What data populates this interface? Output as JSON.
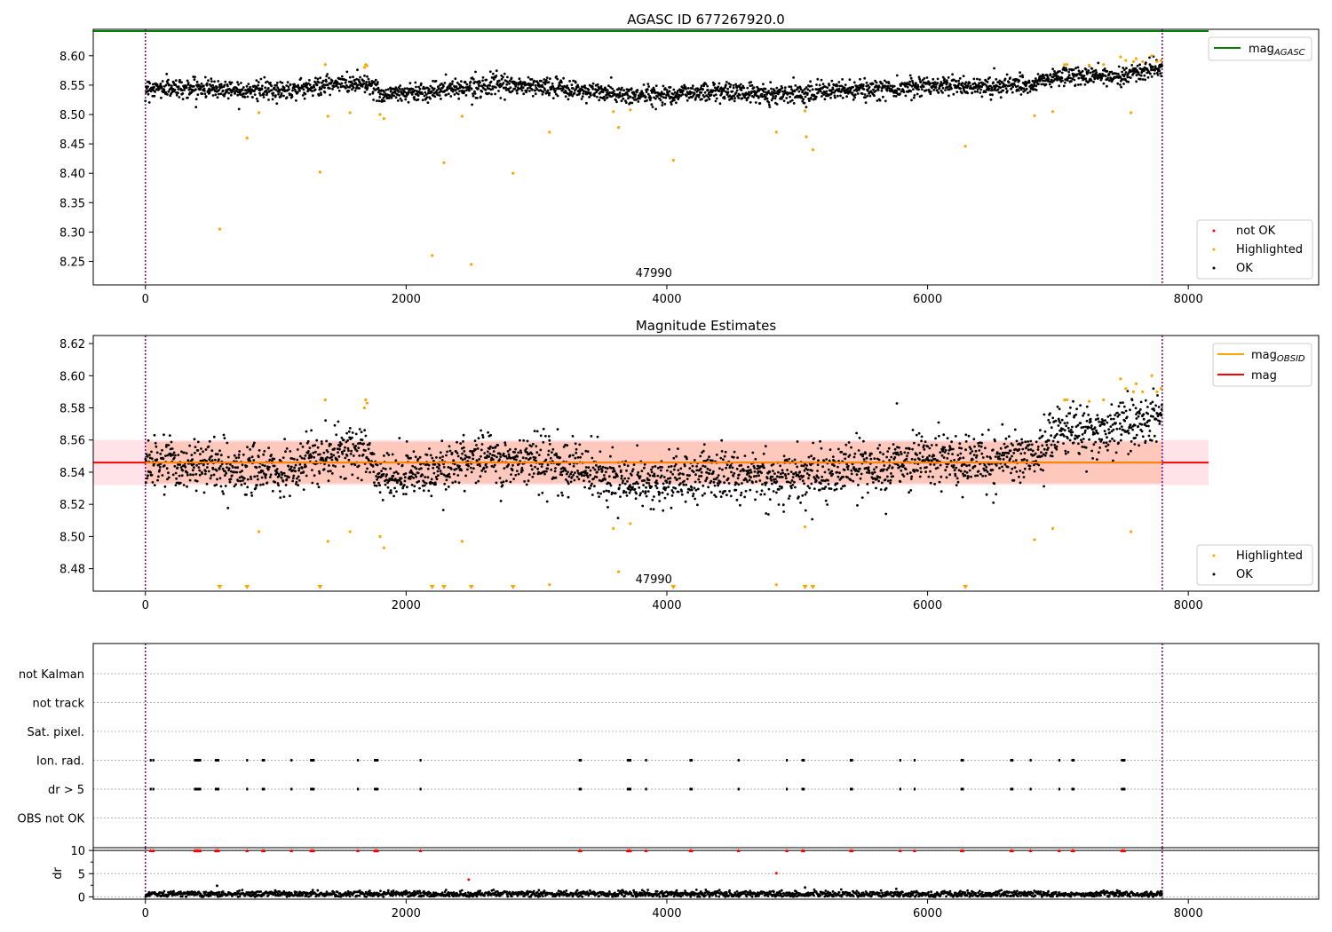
{
  "figure": {
    "panel1_title": "AGASC ID 677267920.0",
    "panel2_title": "Magnitude Estimates",
    "colors": {
      "ok": "#000000",
      "highlighted": "#ffa500",
      "not_ok": "#ff0000",
      "mag_agasc_line": "#008000",
      "mag_line": "#ff0000",
      "mag_obsid_line": "#ffa500",
      "obs_boundary": "#800080",
      "band_outer": "#ffc0cb",
      "band_inner": "#ffa07a"
    }
  },
  "chart_data": [
    {
      "type": "scatter",
      "title": "AGASC ID 677267920.0",
      "xlim": [
        -400,
        9000
      ],
      "ylim": [
        8.21,
        8.645
      ],
      "xticks": [
        0,
        2000,
        4000,
        6000,
        8000
      ],
      "yticks": [
        8.25,
        8.3,
        8.35,
        8.4,
        8.45,
        8.5,
        8.55,
        8.6
      ],
      "ytick_labels": [
        "8.25",
        "8.30",
        "8.35",
        "8.40",
        "8.45",
        "8.50",
        "8.55",
        "8.60"
      ],
      "obs_boundaries": [
        0,
        7800
      ],
      "obsid_label": "47990",
      "obsid_label_x": 3900,
      "mag_agasc": 8.642,
      "legend_lines": [
        {
          "label": "mag",
          "sub": "AGASC",
          "color": "#008000"
        }
      ],
      "legend_points": [
        {
          "label": "not OK",
          "color": "#ff0000"
        },
        {
          "label": "Highlighted",
          "color": "#ffa500"
        },
        {
          "label": "OK",
          "color": "#000000"
        }
      ],
      "ok_trend": {
        "x": [
          0,
          500,
          1000,
          1400,
          1700,
          1800,
          2200,
          2600,
          3000,
          3400,
          3700,
          4000,
          4400,
          4800,
          5200,
          5600,
          6000,
          6400,
          6800,
          7000,
          7400,
          7800
        ],
        "y": [
          8.545,
          8.545,
          8.54,
          8.55,
          8.555,
          8.535,
          8.54,
          8.55,
          8.548,
          8.54,
          8.532,
          8.535,
          8.54,
          8.535,
          8.54,
          8.542,
          8.55,
          8.548,
          8.55,
          8.565,
          8.565,
          8.578
        ]
      },
      "ok_scatter": 0.008,
      "highlighted": [
        [
          570,
          8.305
        ],
        [
          780,
          8.46
        ],
        [
          870,
          8.503
        ],
        [
          1340,
          8.402
        ],
        [
          1380,
          8.585
        ],
        [
          1400,
          8.497
        ],
        [
          1570,
          8.503
        ],
        [
          1680,
          8.58
        ],
        [
          1690,
          8.585
        ],
        [
          1700,
          8.583
        ],
        [
          1800,
          8.5
        ],
        [
          1830,
          8.493
        ],
        [
          2200,
          8.26
        ],
        [
          2290,
          8.418
        ],
        [
          2430,
          8.497
        ],
        [
          2500,
          8.245
        ],
        [
          2820,
          8.4
        ],
        [
          3100,
          8.47
        ],
        [
          3590,
          8.505
        ],
        [
          3630,
          8.478
        ],
        [
          3720,
          8.508
        ],
        [
          4050,
          8.422
        ],
        [
          4840,
          8.47
        ],
        [
          5060,
          8.506
        ],
        [
          5070,
          8.462
        ],
        [
          5120,
          8.44
        ],
        [
          6290,
          8.446
        ],
        [
          6820,
          8.498
        ],
        [
          6960,
          8.505
        ],
        [
          7050,
          8.585
        ],
        [
          7070,
          8.585
        ],
        [
          7240,
          8.584
        ],
        [
          7350,
          8.585
        ],
        [
          7480,
          8.598
        ],
        [
          7520,
          8.592
        ],
        [
          7560,
          8.503
        ],
        [
          7580,
          8.59
        ],
        [
          7600,
          8.595
        ],
        [
          7650,
          8.59
        ],
        [
          7720,
          8.6
        ],
        [
          7760,
          8.59
        ],
        [
          7790,
          8.592
        ]
      ]
    },
    {
      "type": "scatter",
      "title": "Magnitude Estimates",
      "xlim": [
        -400,
        9000
      ],
      "ylim": [
        8.466,
        8.625
      ],
      "xticks": [
        0,
        2000,
        4000,
        6000,
        8000
      ],
      "yticks": [
        8.48,
        8.5,
        8.52,
        8.54,
        8.56,
        8.58,
        8.6,
        8.62
      ],
      "ytick_labels": [
        "8.48",
        "8.50",
        "8.52",
        "8.54",
        "8.56",
        "8.58",
        "8.60",
        "8.62"
      ],
      "obs_boundaries": [
        0,
        7800
      ],
      "obsid_label": "47990",
      "obsid_label_x": 3900,
      "mag": 8.546,
      "mag_obsid": 8.546,
      "band_outer": [
        8.532,
        8.56
      ],
      "band_inner": [
        8.533,
        8.559
      ],
      "legend_lines": [
        {
          "label": "mag",
          "sub": "OBSID",
          "color": "#ffa500"
        },
        {
          "label": "mag",
          "sub": "",
          "color": "#ff0000"
        }
      ],
      "legend_points": [
        {
          "label": "Highlighted",
          "color": "#ffa500"
        },
        {
          "label": "OK",
          "color": "#000000"
        }
      ],
      "highlighted_below_range_x": [
        570,
        780,
        1340,
        2200,
        2290,
        2500,
        2820,
        4050,
        5060,
        5120,
        6290
      ]
    },
    {
      "type": "scatter",
      "title": "",
      "xlim": [
        -400,
        9000
      ],
      "obs_boundaries": [
        0,
        7800
      ],
      "flag_rows": [
        "not Kalman",
        "not track",
        "Sat. pixel.",
        "Ion. rad.",
        "dr > 5",
        "OBS not OK"
      ],
      "flag_events_x": [
        40,
        60,
        380,
        390,
        400,
        410,
        420,
        540,
        550,
        560,
        780,
        900,
        910,
        1120,
        1270,
        1280,
        1290,
        1630,
        1760,
        1770,
        1780,
        2110,
        3330,
        3340,
        3700,
        3710,
        3720,
        3840,
        4180,
        4190,
        4550,
        4920,
        5040,
        5050,
        5410,
        5420,
        5790,
        5900,
        6260,
        6270,
        6640,
        6650,
        6790,
        7010,
        7110,
        7120,
        7490,
        7500,
        7510
      ],
      "flag_event_rows": [
        "Ion. rad.",
        "dr > 5"
      ]
    },
    {
      "type": "scatter",
      "title": "",
      "ylabel": "dr",
      "xlim": [
        -400,
        9000
      ],
      "ylim": [
        -0.5,
        10.6
      ],
      "xticks": [
        0,
        2000,
        4000,
        6000,
        8000
      ],
      "yticks": [
        0,
        5,
        10
      ],
      "ytick_labels": [
        "0",
        "5",
        "10"
      ],
      "obs_boundaries": [
        0,
        7800
      ],
      "dr_clipped_value": 10,
      "dr_typical": 0.6,
      "dr_outliers": [
        [
          2480,
          3.7
        ],
        [
          4840,
          5.1
        ],
        [
          5060,
          2.0
        ],
        [
          550,
          2.4
        ]
      ]
    }
  ]
}
